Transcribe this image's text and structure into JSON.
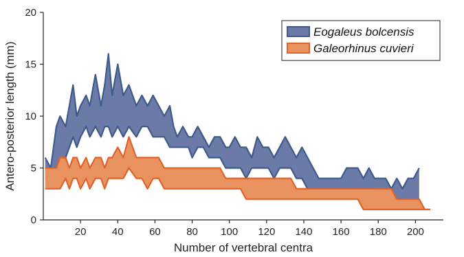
{
  "chart_data": {
    "type": "area",
    "xlabel": "Number of vertebral centra",
    "ylabel": "Antero-posterior length (mm)",
    "xlim": [
      0,
      215
    ],
    "ylim": [
      0,
      20
    ],
    "xticks": [
      20,
      40,
      60,
      80,
      100,
      120,
      140,
      160,
      180,
      200
    ],
    "yticks": [
      0,
      5,
      10,
      15,
      20
    ],
    "grid": false,
    "legend_position": "top-right",
    "series": [
      {
        "name": "Eogaleus bolcensis",
        "color": "#3d5a8a",
        "fill": "#6b7aa6",
        "x": [
          1,
          4,
          7,
          9,
          12,
          14,
          16,
          18,
          20,
          23,
          25,
          28,
          31,
          33,
          35,
          37,
          40,
          43,
          46,
          50,
          53,
          56,
          59,
          62,
          65,
          68,
          70,
          72,
          75,
          78,
          80,
          83,
          86,
          89,
          92,
          95,
          98,
          100,
          103,
          106,
          109,
          112,
          115,
          118,
          121,
          124,
          127,
          130,
          133,
          136,
          139,
          142,
          145,
          148,
          151,
          154,
          157,
          160,
          163,
          166,
          169,
          172,
          175,
          178,
          181,
          184,
          187,
          190,
          193,
          196,
          199,
          202
        ],
        "upper": [
          6,
          5,
          9,
          10,
          9,
          11,
          13,
          10,
          11,
          12,
          11,
          14,
          11,
          13,
          16,
          12,
          15,
          12,
          13,
          11,
          12,
          11,
          12,
          11,
          10,
          11,
          9,
          8,
          9,
          8,
          8,
          9,
          8,
          7,
          8,
          8,
          7,
          7,
          8,
          7,
          7,
          6,
          8,
          7,
          7,
          6,
          7,
          8,
          7,
          6,
          7,
          6,
          5,
          4,
          4,
          4,
          4,
          4,
          5,
          5,
          5,
          4,
          5,
          4,
          4,
          4,
          3,
          4,
          3,
          4,
          4,
          5
        ],
        "lower": [
          4,
          4,
          5,
          5,
          6,
          7,
          8,
          7,
          8,
          9,
          8,
          9,
          8,
          9,
          9,
          8,
          9,
          8,
          9,
          8,
          9,
          9,
          8,
          8,
          8,
          7,
          7,
          7,
          7,
          7,
          6,
          7,
          7,
          6,
          6,
          6,
          5,
          5,
          5,
          5,
          4,
          5,
          5,
          5,
          5,
          4,
          5,
          5,
          5,
          4,
          4,
          3,
          3,
          3,
          3,
          3,
          3,
          3,
          3,
          3,
          3,
          3,
          3,
          3,
          2,
          2,
          2,
          2,
          2,
          2,
          2,
          2
        ]
      },
      {
        "name": "Galeorhinus cuvieri",
        "color": "#e0622a",
        "fill": "#e8935f",
        "x": [
          1,
          4,
          7,
          9,
          12,
          14,
          16,
          18,
          20,
          23,
          25,
          28,
          31,
          33,
          35,
          37,
          40,
          43,
          46,
          50,
          53,
          56,
          59,
          62,
          65,
          68,
          70,
          72,
          75,
          78,
          80,
          83,
          86,
          89,
          92,
          95,
          98,
          100,
          103,
          106,
          109,
          112,
          115,
          118,
          121,
          124,
          127,
          130,
          133,
          136,
          139,
          142,
          145,
          148,
          151,
          154,
          157,
          160,
          163,
          166,
          169,
          172,
          175,
          178,
          181,
          184,
          187,
          190,
          193,
          196,
          199,
          202,
          205,
          208
        ],
        "upper": [
          5,
          5,
          5,
          6,
          6,
          5,
          6,
          6,
          5,
          6,
          5,
          6,
          6,
          5,
          6,
          6,
          7,
          6,
          8,
          6,
          6,
          6,
          6,
          6,
          5,
          5,
          5,
          5,
          5,
          5,
          5,
          5,
          5,
          5,
          5,
          5,
          4,
          4,
          4,
          4,
          4,
          4,
          4,
          4,
          4,
          4,
          4,
          4,
          4,
          3,
          3,
          3,
          3,
          3,
          3,
          3,
          3,
          3,
          3,
          3,
          3,
          3,
          3,
          3,
          3,
          3,
          3,
          2,
          2,
          2,
          2,
          2,
          1,
          1
        ],
        "lower": [
          3,
          3,
          3,
          3,
          4,
          3,
          4,
          4,
          3,
          4,
          3,
          4,
          4,
          3,
          4,
          4,
          4,
          4,
          5,
          4,
          4,
          3,
          4,
          4,
          3,
          3,
          3,
          3,
          3,
          3,
          3,
          3,
          3,
          3,
          3,
          3,
          3,
          3,
          3,
          3,
          2,
          2,
          2,
          2,
          2,
          2,
          2,
          2,
          2,
          2,
          2,
          2,
          2,
          2,
          2,
          2,
          2,
          2,
          2,
          2,
          2,
          1,
          1,
          1,
          1,
          1,
          1,
          1,
          1,
          1,
          1,
          1,
          1,
          1
        ]
      }
    ]
  }
}
